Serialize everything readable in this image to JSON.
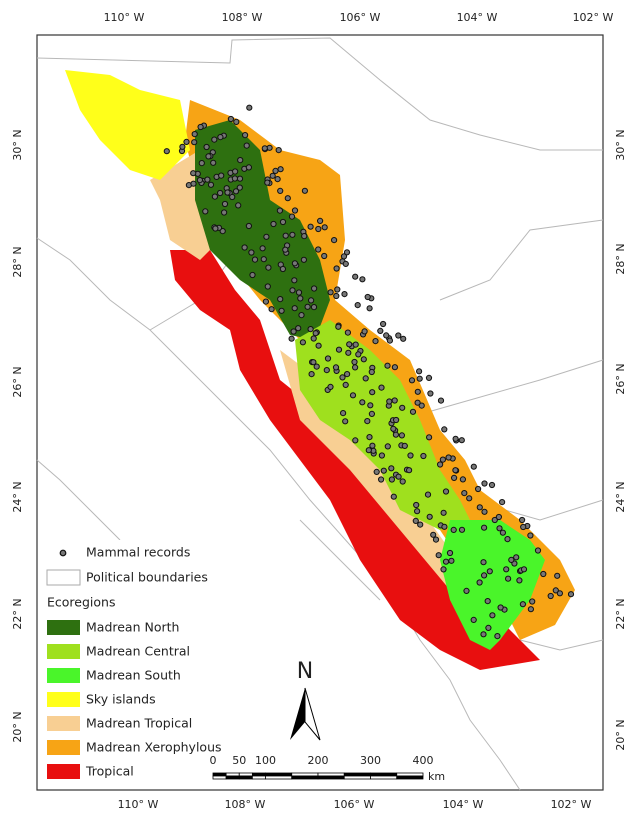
{
  "map": {
    "top_ticks": [
      "110° W",
      "108° W",
      "106° W",
      "104° W",
      "102° W"
    ],
    "bottom_ticks": [
      "110° W",
      "108° W",
      "106° W",
      "104° W",
      "102° W"
    ],
    "left_ticks": [
      "30° N",
      "28° N",
      "26° N",
      "24° N",
      "22° N",
      "20° N"
    ],
    "right_ticks": [
      "30° N",
      "28° N",
      "26° N",
      "24° N",
      "22° N",
      "20° N"
    ]
  },
  "legend": {
    "records_label": "Mammal records",
    "boundaries_label": "Political boundaries",
    "ecoregions_title": "Ecoregions",
    "ecoregions": [
      {
        "label": "Madrean North",
        "color": "#2e7010"
      },
      {
        "label": "Madrean Central",
        "color": "#9fe01e"
      },
      {
        "label": "Madrean South",
        "color": "#4af52a"
      },
      {
        "label": "Sky islands",
        "color": "#ffff1a"
      },
      {
        "label": "Madrean Tropical",
        "color": "#f8cf93"
      },
      {
        "label": "Madrean Xerophylous",
        "color": "#f7a415"
      },
      {
        "label": "Tropical",
        "color": "#e80f0f"
      }
    ]
  },
  "north_arrow": "N",
  "scale_bar": {
    "ticks": [
      0,
      50,
      100,
      200,
      300,
      400
    ],
    "unit": "km"
  }
}
